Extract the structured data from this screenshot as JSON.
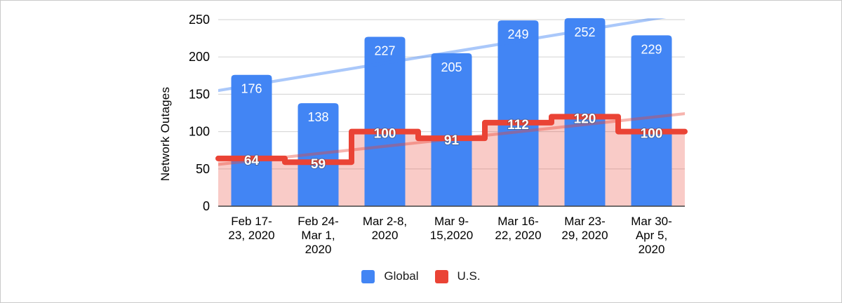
{
  "frame": {
    "background": "#ffffff",
    "border_color": "#c9c9c9"
  },
  "chart_data": {
    "type": "bar",
    "title": "",
    "xlabel": "",
    "ylabel": "Network Outages",
    "ylim": [
      0,
      250
    ],
    "yticks": [
      0,
      50,
      100,
      150,
      200,
      250
    ],
    "grid": {
      "on": true,
      "color": "#d9d9d9",
      "baseline_color": "#424242"
    },
    "categories": [
      {
        "label": "Feb 17-23, 2020",
        "lines": [
          "Feb 17-",
          "23, 2020"
        ]
      },
      {
        "label": "Feb 24-Mar 1, 2020",
        "lines": [
          "Feb 24-",
          "Mar 1,",
          "2020"
        ]
      },
      {
        "label": "Mar 2-8, 2020",
        "lines": [
          "Mar 2-8,",
          "2020"
        ]
      },
      {
        "label": "Mar 9-15,2020",
        "lines": [
          "Mar 9-",
          "15,2020"
        ]
      },
      {
        "label": "Mar 16-22, 2020",
        "lines": [
          "Mar 16-",
          "22, 2020"
        ]
      },
      {
        "label": "Mar 23-29, 2020",
        "lines": [
          "Mar 23-",
          "29, 2020"
        ]
      },
      {
        "label": "Mar 30-Apr 5, 2020",
        "lines": [
          "Mar 30-",
          "Apr 5,",
          "2020"
        ]
      }
    ],
    "series": [
      {
        "name": "Global",
        "kind": "bar",
        "color": "#4285f4",
        "value_label_color": "#ffffff",
        "values": [
          176,
          138,
          227,
          205,
          249,
          252,
          229
        ]
      },
      {
        "name": "U.S.",
        "kind": "stepped_area",
        "line_color": "#ea4335",
        "area_fill": "rgba(234,67,53,0.28)",
        "value_label_color": "#ffffff",
        "values": [
          64,
          59,
          100,
          91,
          112,
          120,
          100
        ]
      }
    ],
    "trendlines": [
      {
        "series": "Global",
        "color": "rgba(66,133,244,0.45)",
        "start_value": 155,
        "end_value": 258
      },
      {
        "series": "U.S.",
        "color": "rgba(234,67,53,0.40)",
        "start_value": 56,
        "end_value": 124
      }
    ],
    "legend": {
      "position": "bottom",
      "items": [
        {
          "label": "Global",
          "color": "#4285f4"
        },
        {
          "label": "U.S.",
          "color": "#ea4335"
        }
      ]
    }
  }
}
